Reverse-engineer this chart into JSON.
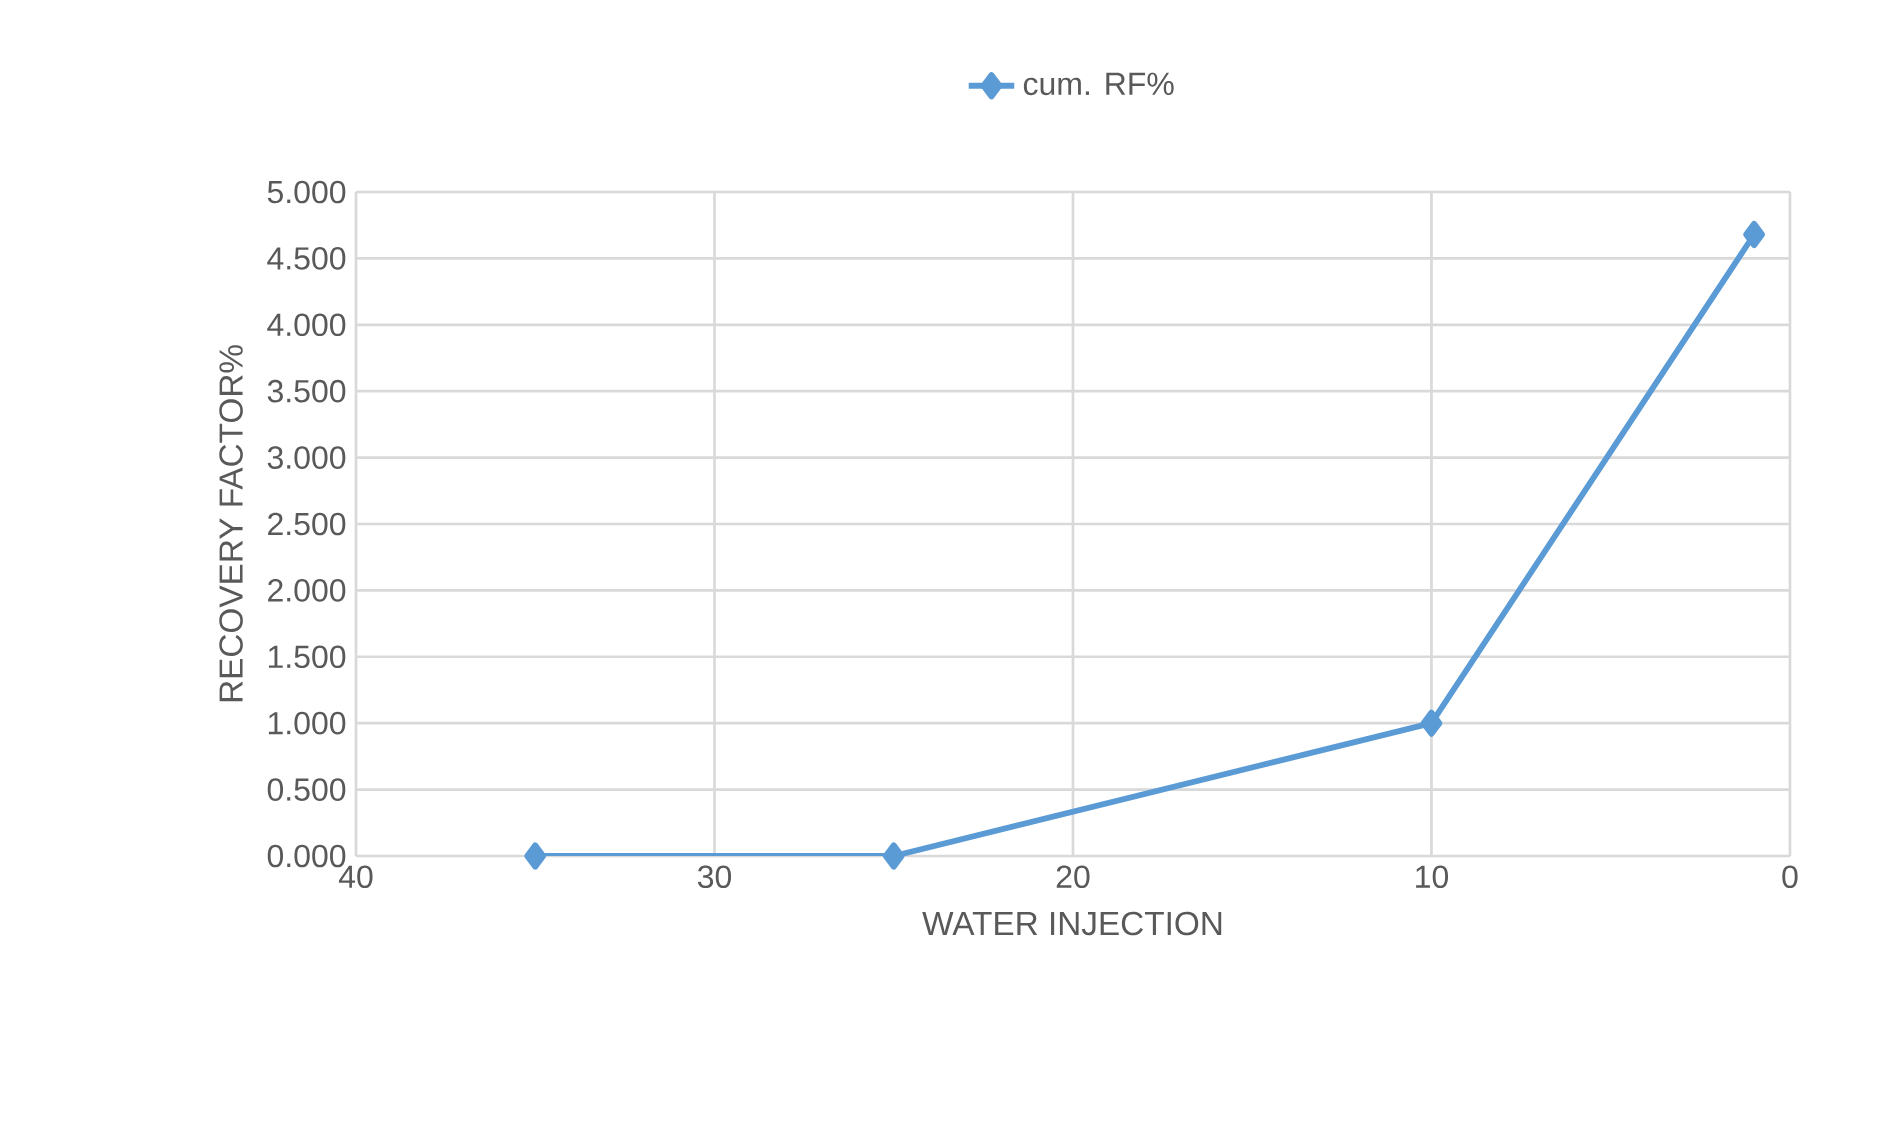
{
  "chart_data": {
    "type": "line",
    "xlabel": "WATER INJECTION",
    "ylabel": "RECOVERY FACTOR%",
    "x": [
      35,
      25,
      10,
      1
    ],
    "series": [
      {
        "name": "cum. RF%",
        "color": "#5b9bd5",
        "values": [
          0,
          0,
          1.0,
          4.68
        ]
      }
    ],
    "xlim": [
      40,
      0
    ],
    "xticks": [
      40,
      30,
      20,
      10,
      0
    ],
    "ylim": [
      0,
      5
    ],
    "yticks": [
      {
        "value": 0,
        "label": "0.000"
      },
      {
        "value": 0.5,
        "label": "0.500"
      },
      {
        "value": 1,
        "label": "1.000"
      },
      {
        "value": 1.5,
        "label": "1.500"
      },
      {
        "value": 2,
        "label": "2.000"
      },
      {
        "value": 2.5,
        "label": "2.500"
      },
      {
        "value": 3,
        "label": "3.000"
      },
      {
        "value": 3.5,
        "label": "3.500"
      },
      {
        "value": 4,
        "label": "4.000"
      },
      {
        "value": 4.5,
        "label": "4.500"
      },
      {
        "value": 5,
        "label": "5.000"
      }
    ],
    "grid": true,
    "legend": "top",
    "marker": "diamond",
    "line_style": "solid"
  }
}
